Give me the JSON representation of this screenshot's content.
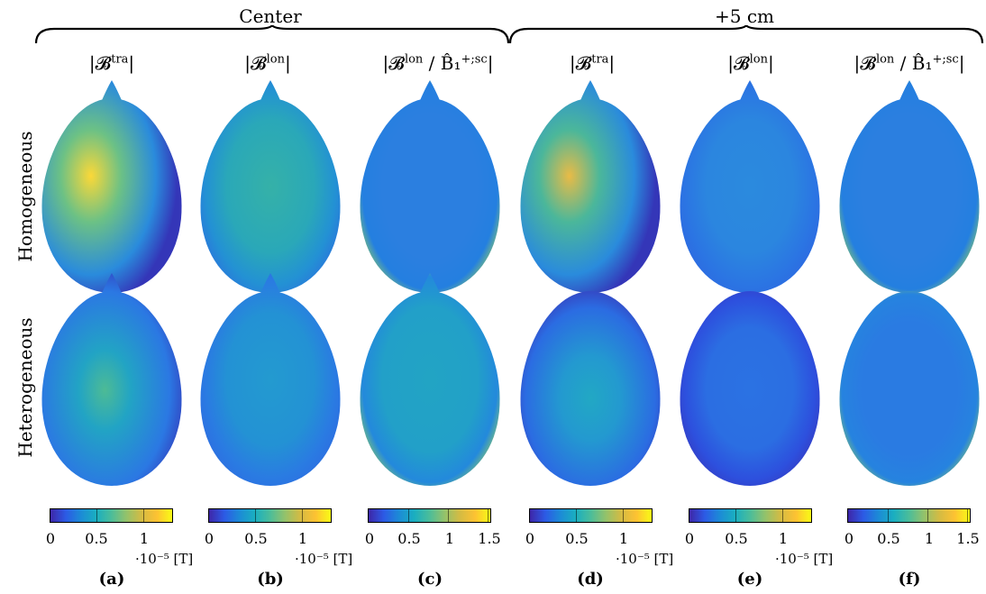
{
  "groups": [
    {
      "title": "Center"
    },
    {
      "title": "+5 cm"
    }
  ],
  "column_headers": [
    {
      "base": "|𝓑",
      "sup": "tra",
      "rest": "|"
    },
    {
      "base": "|𝓑",
      "sup": "lon",
      "rest": "|"
    },
    {
      "base": "|𝓑",
      "sup": "lon",
      "rest": " / B̂₁",
      "sup2": "+;sc",
      "rest2": "|"
    },
    {
      "base": "|𝓑",
      "sup": "tra",
      "rest": "|"
    },
    {
      "base": "|𝓑",
      "sup": "lon",
      "rest": "|"
    },
    {
      "base": "|𝓑",
      "sup": "lon",
      "rest": " / B̂₁",
      "sup2": "+;sc",
      "rest2": "|"
    }
  ],
  "row_labels": [
    "Homogeneous",
    "Heterogeneous"
  ],
  "colorbars": [
    {
      "ticks": [
        "0",
        "0.5",
        "1"
      ],
      "unit": "·10⁻⁵ [T]"
    },
    {
      "ticks": [
        "0",
        "0.5",
        "1"
      ],
      "unit": "·10⁻⁵ [T]"
    },
    {
      "ticks": [
        "0",
        "0.5",
        "1",
        "1.5"
      ],
      "unit": ""
    },
    {
      "ticks": [
        "0",
        "0.5",
        "1"
      ],
      "unit": "·10⁻⁵ [T]"
    },
    {
      "ticks": [
        "0",
        "0.5",
        "1"
      ],
      "unit": "·10⁻⁵ [T]"
    },
    {
      "ticks": [
        "0",
        "0.5",
        "1",
        "1.5"
      ],
      "unit": ""
    }
  ],
  "captions": [
    "(a)",
    "(b)",
    "(c)",
    "(d)",
    "(e)",
    "(f)"
  ],
  "colormap": [
    "#3e26a8",
    "#2c5ae5",
    "#1c8bd6",
    "#1aaec0",
    "#4bbd9a",
    "#94c26a",
    "#d4bb43",
    "#fdc232",
    "#f9fb15"
  ]
}
